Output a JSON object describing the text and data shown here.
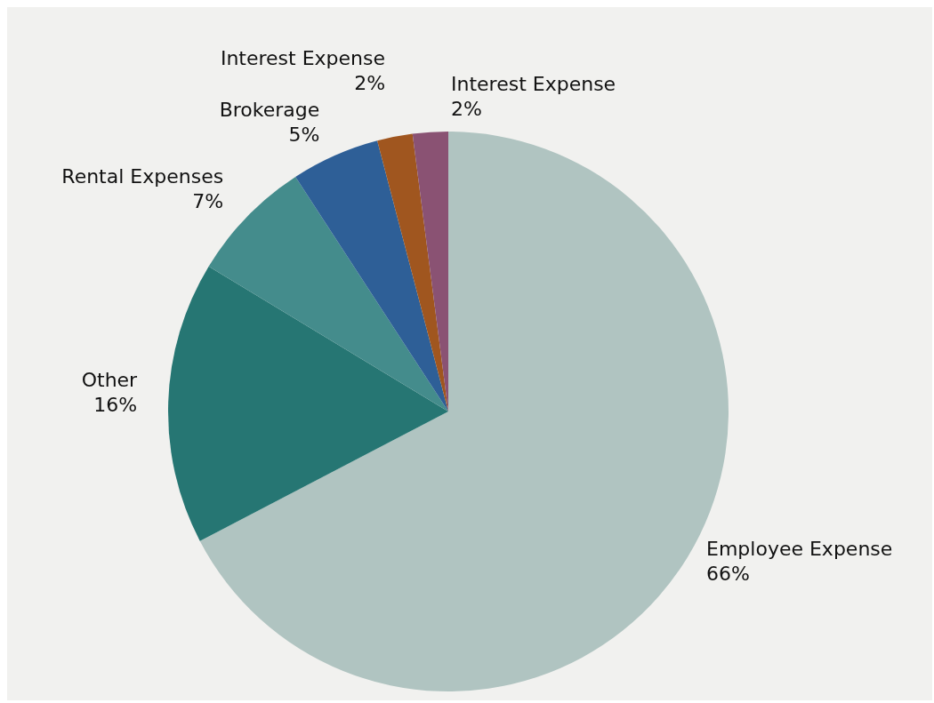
{
  "chart_data": {
    "type": "pie",
    "categories": [
      "Employee Expense",
      "Other",
      "Rental Expenses",
      "Brokerage",
      "Interest Expense",
      "Interest Expense"
    ],
    "values": [
      66,
      16,
      7,
      5,
      2,
      2
    ],
    "value_labels": [
      "66%",
      "16%",
      "7%",
      "5%",
      "2%",
      "2%"
    ],
    "colors": [
      "#b0c4c1",
      "#267673",
      "#448c8c",
      "#2e5f97",
      "#a0561f",
      "#8a5273"
    ],
    "legend": false
  }
}
